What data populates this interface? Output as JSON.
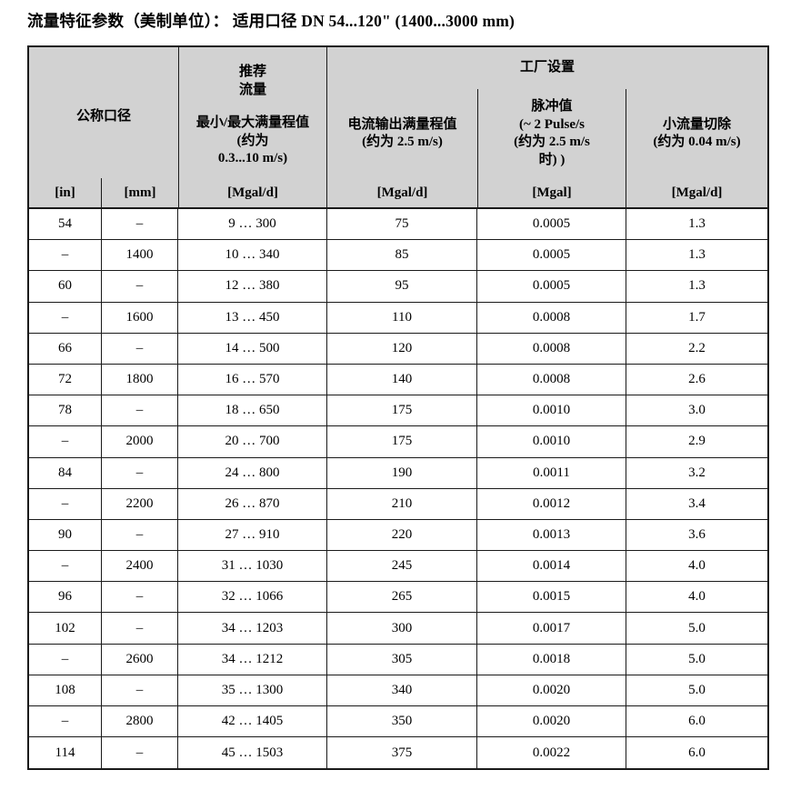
{
  "title": "流量特征参数（美制单位）： 适用口径 DN 54...120\" (1400...3000 mm)",
  "colors": {
    "header_bg": "#d2d2d2",
    "border": "#1a1a1a",
    "text": "#000000",
    "page_bg": "#ffffff"
  },
  "table": {
    "header": {
      "nominal_diameter": "公称口径",
      "recommended_flow": "推荐\n流量",
      "recommended_flow_range": "最小/最大满量程值\n(约为\n0.3...10 m/s)",
      "factory_settings": "工厂设置",
      "current_output_full_scale": "电流输出满量程值\n(约为 2.5 m/s)",
      "pulse_value": "脉冲值\n(~ 2 Pulse/s\n(约为 2.5 m/s\n时) )",
      "low_flow_cutoff": "小流量切除\n(约为 0.04 m/s)",
      "units": {
        "inch": "[in]",
        "mm": "[mm]",
        "recommended_flow": "[Mgal/d]",
        "current_output": "[Mgal/d]",
        "pulse": "[Mgal]",
        "low_flow_cutoff": "[Mgal/d]"
      }
    },
    "rows": [
      [
        "54",
        "–",
        "9 … 300",
        "75",
        "0.0005",
        "1.3"
      ],
      [
        "–",
        "1400",
        "10 … 340",
        "85",
        "0.0005",
        "1.3"
      ],
      [
        "60",
        "–",
        "12 … 380",
        "95",
        "0.0005",
        "1.3"
      ],
      [
        "–",
        "1600",
        "13 … 450",
        "110",
        "0.0008",
        "1.7"
      ],
      [
        "66",
        "–",
        "14 … 500",
        "120",
        "0.0008",
        "2.2"
      ],
      [
        "72",
        "1800",
        "16 … 570",
        "140",
        "0.0008",
        "2.6"
      ],
      [
        "78",
        "–",
        "18 … 650",
        "175",
        "0.0010",
        "3.0"
      ],
      [
        "–",
        "2000",
        "20 … 700",
        "175",
        "0.0010",
        "2.9"
      ],
      [
        "84",
        "–",
        "24 … 800",
        "190",
        "0.0011",
        "3.2"
      ],
      [
        "–",
        "2200",
        "26 … 870",
        "210",
        "0.0012",
        "3.4"
      ],
      [
        "90",
        "–",
        "27 … 910",
        "220",
        "0.0013",
        "3.6"
      ],
      [
        "–",
        "2400",
        "31 … 1030",
        "245",
        "0.0014",
        "4.0"
      ],
      [
        "96",
        "–",
        "32 … 1066",
        "265",
        "0.0015",
        "4.0"
      ],
      [
        "102",
        "–",
        "34 … 1203",
        "300",
        "0.0017",
        "5.0"
      ],
      [
        "–",
        "2600",
        "34 … 1212",
        "305",
        "0.0018",
        "5.0"
      ],
      [
        "108",
        "–",
        "35 … 1300",
        "340",
        "0.0020",
        "5.0"
      ],
      [
        "–",
        "2800",
        "42 … 1405",
        "350",
        "0.0020",
        "6.0"
      ],
      [
        "114",
        "–",
        "45 … 1503",
        "375",
        "0.0022",
        "6.0"
      ]
    ]
  }
}
